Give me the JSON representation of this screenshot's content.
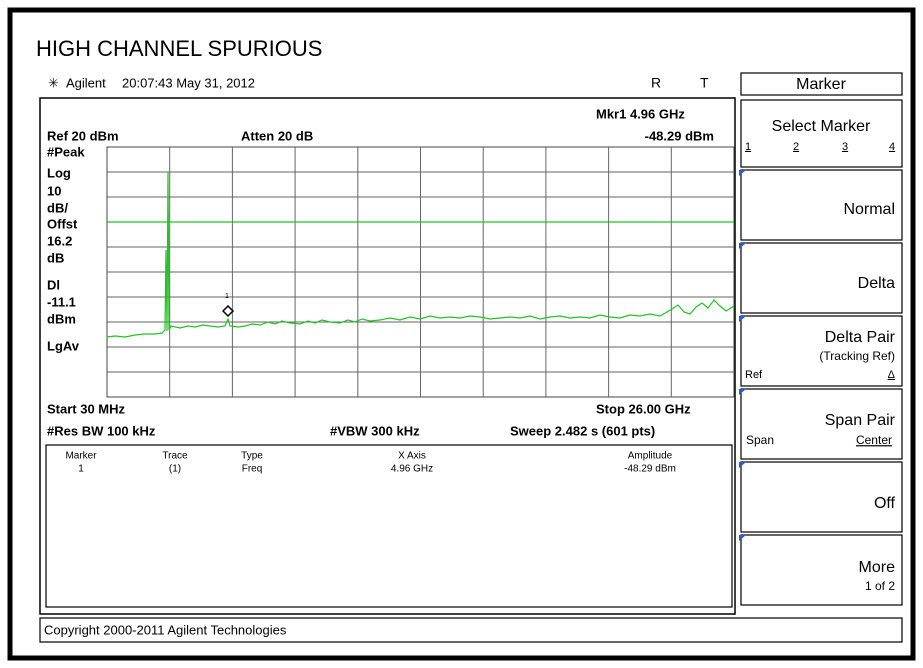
{
  "header": {
    "title": "HIGH CHANNEL SPURIOUS",
    "brand": "Agilent",
    "timestamp": "20:07:43  May 31, 2012",
    "status_r": "R",
    "status_t": "T"
  },
  "softkeys": {
    "title": "Marker",
    "buttons": [
      {
        "label": "Select Marker",
        "options": [
          "1",
          "2",
          "3",
          "4"
        ]
      },
      {
        "label": "Normal"
      },
      {
        "label": "Delta"
      },
      {
        "label": "Delta Pair",
        "sublabel": "(Tracking Ref)",
        "left": "Ref",
        "right": "Δ"
      },
      {
        "label": "Span Pair",
        "left": "Span",
        "right": "Center"
      },
      {
        "label": "Off"
      },
      {
        "label": "More",
        "sublabel": "1 of 2"
      }
    ]
  },
  "screen": {
    "ref_level": "Ref 20 dBm",
    "atten": "Atten 20 dB",
    "marker_readout": "Mkr1  4.96 GHz",
    "marker_amplitude": "-48.29 dBm",
    "left_labels": [
      "#Peak",
      "Log",
      "10",
      "dB/",
      "Offst",
      "16.2",
      "dB",
      "Dl",
      "-11.1",
      "dBm",
      "LgAv"
    ],
    "marker_label": "1",
    "start": "Start 30 MHz",
    "stop": "Stop 26.00 GHz",
    "res_bw": "#Res BW 100 kHz",
    "vbw": "#VBW 300 kHz",
    "sweep": "Sweep 2.482 s (601 pts)"
  },
  "table": {
    "columns": [
      "Marker",
      "Trace",
      "Type",
      "X Axis",
      "Amplitude"
    ],
    "rows": [
      [
        "1",
        "(1)",
        "Freq",
        "4.96 GHz",
        "-48.29 dBm"
      ]
    ]
  },
  "footer": {
    "copyright": "Copyright 2000-2011 Agilent Technologies"
  }
}
